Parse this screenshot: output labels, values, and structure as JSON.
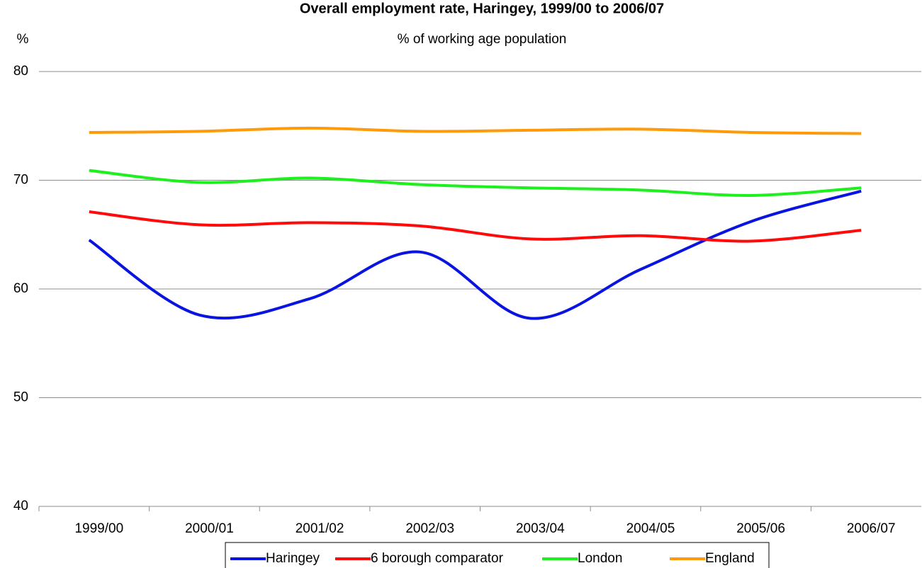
{
  "chart_data": {
    "type": "line",
    "title": "Overall employment rate, Haringey, 1999/00 to 2006/07",
    "subtitle": "% of working age population",
    "y_label": "%",
    "categories": [
      "1999/00",
      "2000/01",
      "2001/02",
      "2002/03",
      "2003/04",
      "2004/05",
      "2005/06",
      "2006/07"
    ],
    "series": [
      {
        "name": "Haringey",
        "color": "#0a14e0",
        "values": [
          64.5,
          57.6,
          59.1,
          63.4,
          57.3,
          61.8,
          66.2,
          69.0
        ]
      },
      {
        "name": "6 borough comparator",
        "color": "#ff0a0a",
        "values": [
          67.1,
          65.9,
          66.1,
          65.8,
          64.6,
          64.9,
          64.4,
          65.4
        ]
      },
      {
        "name": "London",
        "color": "#1ef01e",
        "values": [
          70.9,
          69.8,
          70.2,
          69.6,
          69.3,
          69.1,
          68.6,
          69.3
        ]
      },
      {
        "name": "England",
        "color": "#ff9b0a",
        "values": [
          74.4,
          74.5,
          74.8,
          74.5,
          74.6,
          74.7,
          74.4,
          74.3
        ]
      }
    ],
    "ylim": [
      40,
      80
    ],
    "yticks": [
      40,
      50,
      60,
      70,
      80
    ],
    "grid": true,
    "smooth": true,
    "legend": "bottom"
  }
}
